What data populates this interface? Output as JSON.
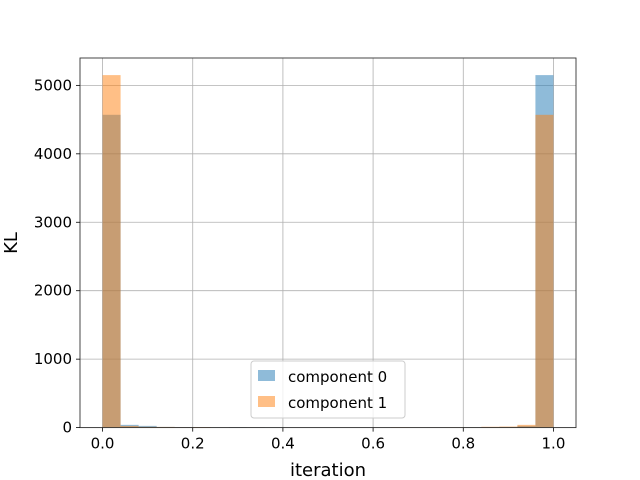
{
  "chart_data": {
    "type": "histogram",
    "title": "",
    "xlabel": "iteration",
    "ylabel": "KL",
    "xlim": [
      -0.05,
      1.05
    ],
    "ylim": [
      0,
      5400
    ],
    "xticks": [
      0.0,
      0.2,
      0.4,
      0.6,
      0.8,
      1.0
    ],
    "xtick_labels": [
      "0.0",
      "0.2",
      "0.4",
      "0.6",
      "0.8",
      "1.0"
    ],
    "yticks": [
      0,
      1000,
      2000,
      3000,
      4000,
      5000
    ],
    "ytick_labels": [
      "0",
      "1000",
      "2000",
      "3000",
      "4000",
      "5000"
    ],
    "grid": true,
    "legend_position": "lower center",
    "bin_edges": [
      0.0,
      0.04,
      0.08,
      0.12,
      0.16,
      0.2,
      0.24,
      0.28,
      0.32,
      0.36,
      0.4,
      0.44,
      0.48,
      0.52,
      0.56,
      0.6,
      0.64,
      0.68,
      0.72,
      0.76,
      0.8,
      0.84,
      0.88,
      0.92,
      0.96,
      1.0
    ],
    "series": [
      {
        "name": "component 0",
        "color": "#1f77b4",
        "opacity": 0.5,
        "counts": [
          4570,
          40,
          25,
          10,
          8,
          6,
          4,
          8,
          5,
          3,
          2,
          2,
          2,
          2,
          2,
          2,
          2,
          2,
          3,
          3,
          6,
          8,
          10,
          25,
          5150
        ]
      },
      {
        "name": "component 1",
        "color": "#ff7f0e",
        "opacity": 0.5,
        "counts": [
          5150,
          25,
          12,
          10,
          6,
          8,
          3,
          4,
          3,
          2,
          2,
          2,
          2,
          2,
          2,
          2,
          5,
          3,
          3,
          4,
          4,
          12,
          15,
          40,
          4570
        ]
      }
    ]
  }
}
